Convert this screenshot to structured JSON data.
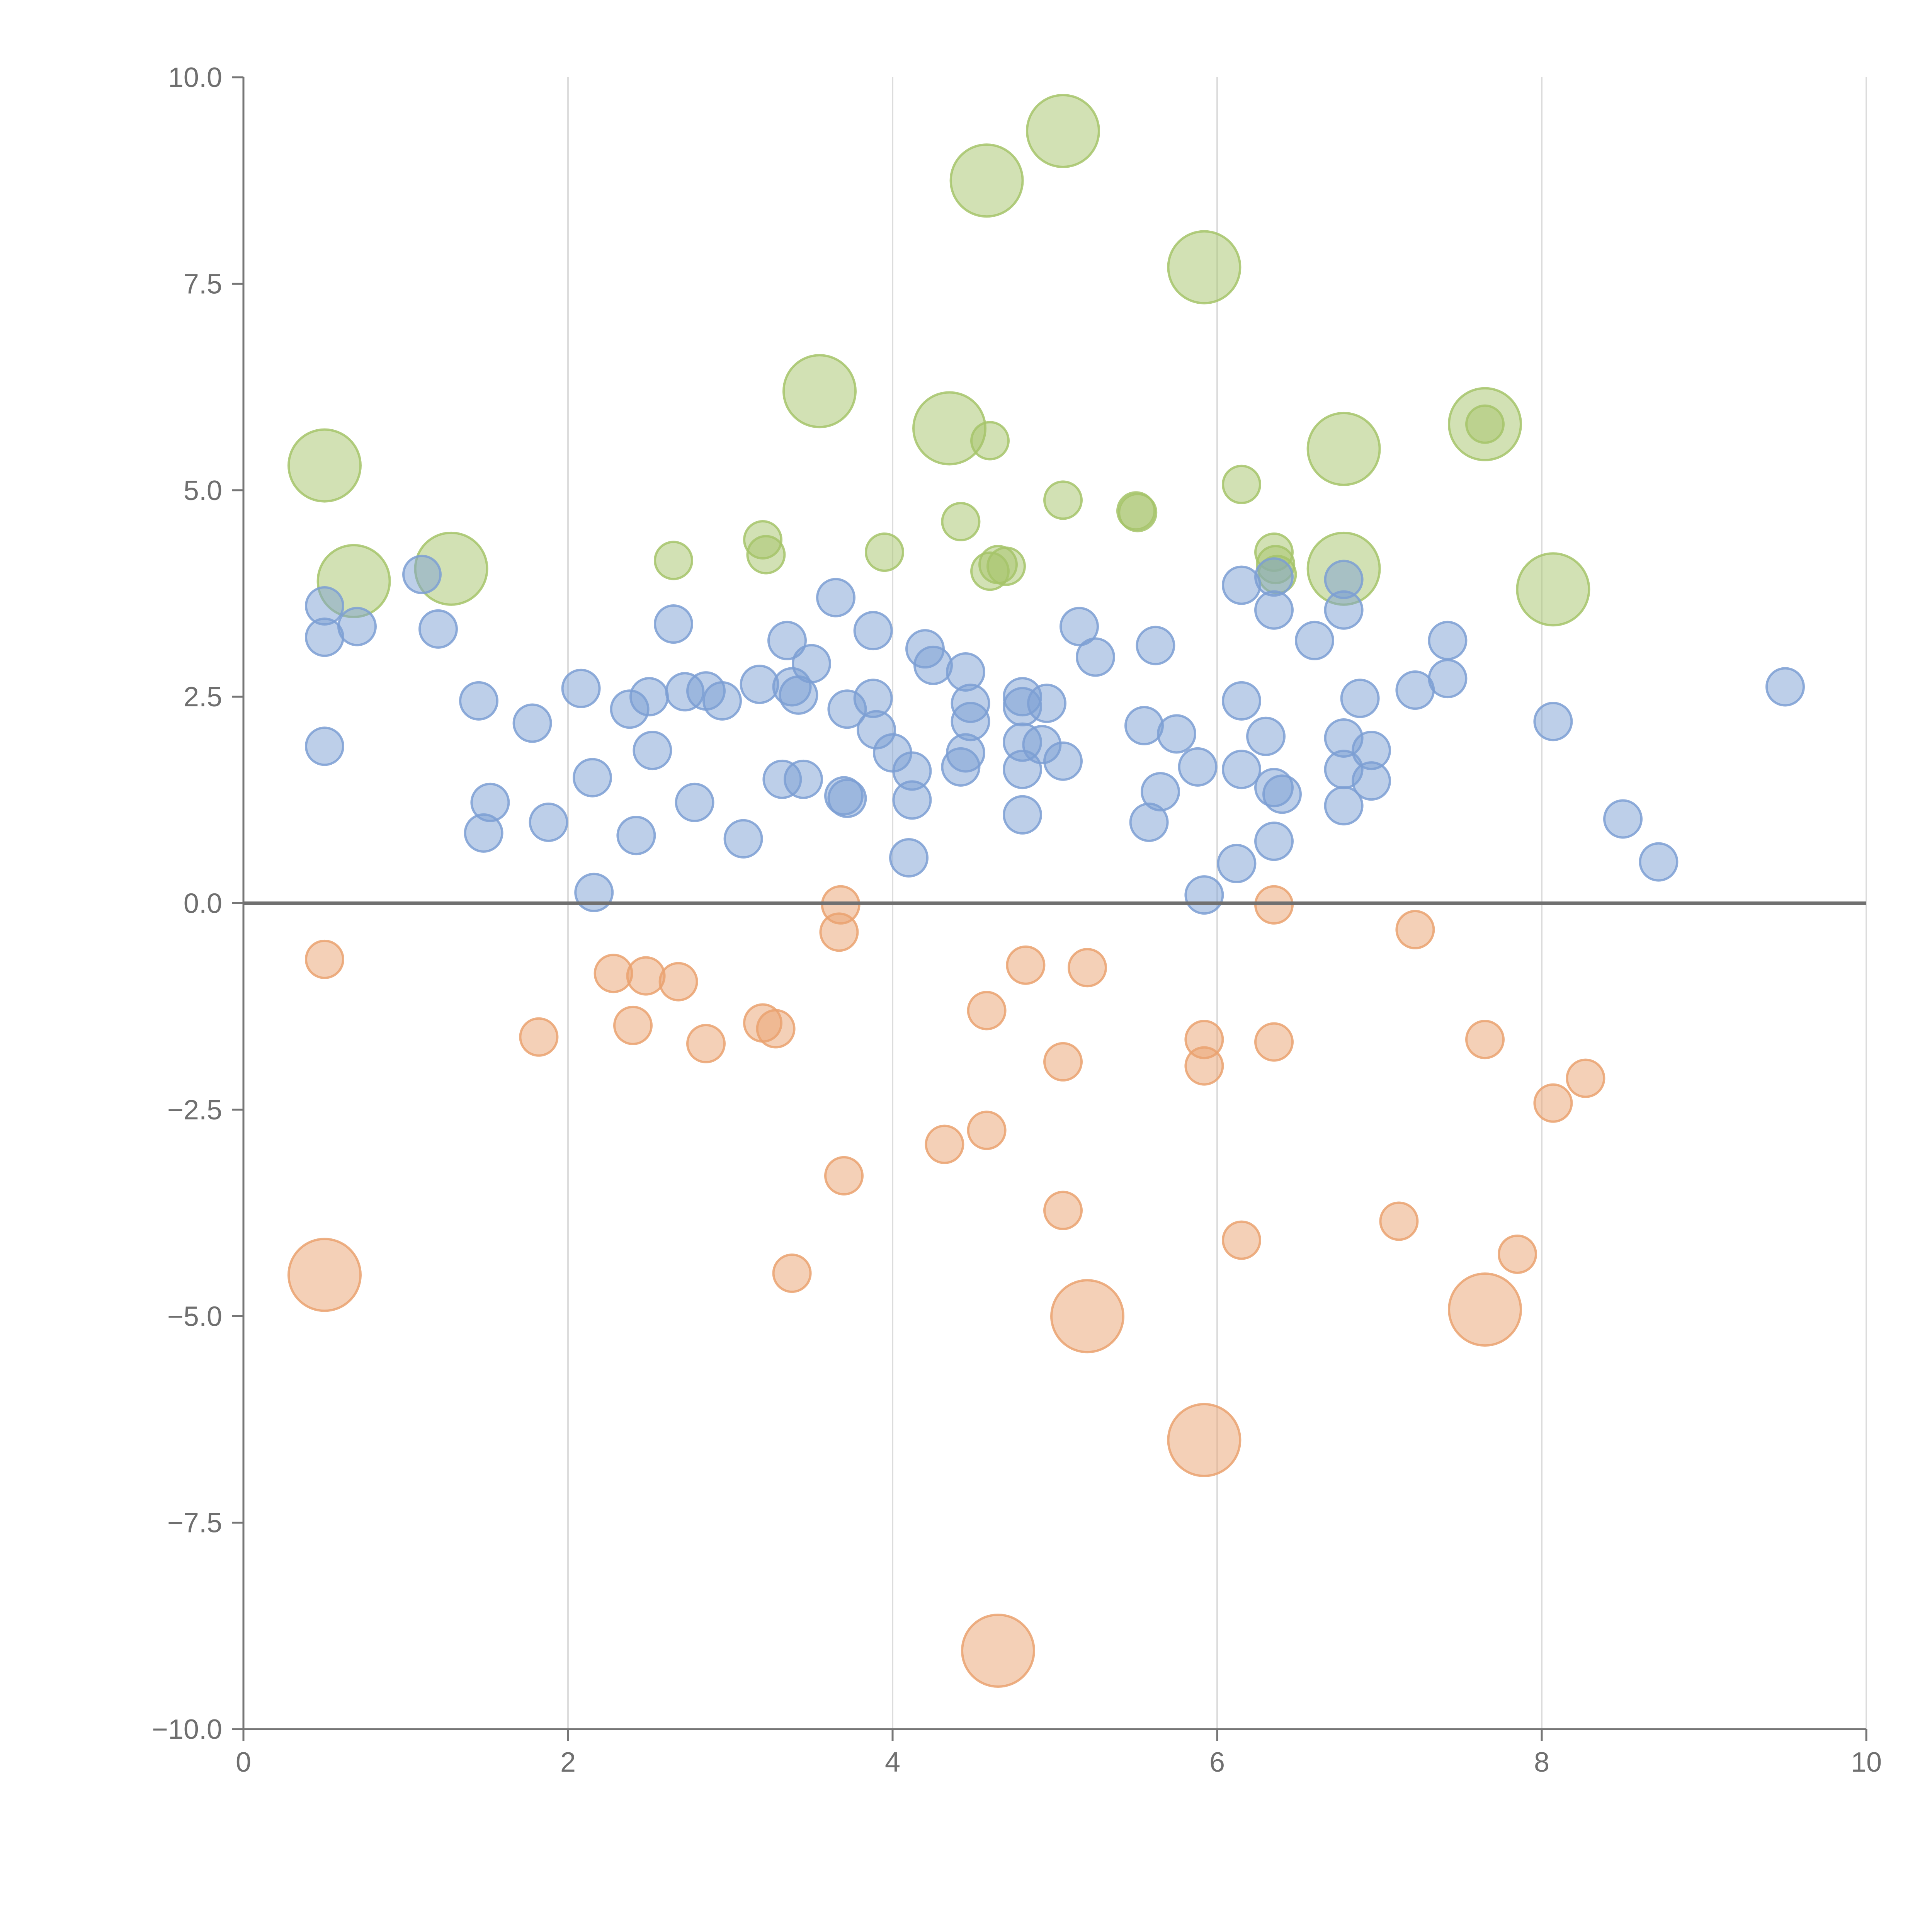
{
  "chart_data": {
    "type": "scatter",
    "title": "",
    "xlabel": "",
    "ylabel": "",
    "xlim": [
      0,
      10
    ],
    "ylim": [
      -10,
      10
    ],
    "x_ticks": [
      0,
      2,
      4,
      6,
      8,
      10
    ],
    "x_tick_labels": [
      "0",
      "2",
      "4",
      "6",
      "8",
      "10"
    ],
    "y_ticks": [
      10,
      7.5,
      5,
      2.5,
      0,
      -2.5,
      -5,
      -7.5,
      -10
    ],
    "y_tick_labels": [
      "10.0",
      "7.5",
      "5.0",
      "2.5",
      "0.0",
      "−2.5",
      "−5.0",
      "−7.5",
      "−10.0"
    ],
    "grid": "vertical",
    "legend": "none",
    "series": [
      {
        "name": "green",
        "color": "#a6c46a",
        "points": [
          [
            0.5,
            5.3,
            2
          ],
          [
            0.68,
            3.9,
            2
          ],
          [
            1.28,
            4.05,
            2
          ],
          [
            3.55,
            6.2,
            2
          ],
          [
            4.35,
            5.75,
            2
          ],
          [
            4.58,
            8.75,
            2
          ],
          [
            5.05,
            9.35,
            2
          ],
          [
            5.92,
            7.7,
            2
          ],
          [
            6.78,
            5.5,
            2
          ],
          [
            6.78,
            4.05,
            2
          ],
          [
            7.65,
            5.8,
            2
          ],
          [
            8.07,
            3.8,
            2
          ],
          [
            2.65,
            4.15,
            1
          ],
          [
            3.2,
            4.4,
            1
          ],
          [
            3.22,
            4.22,
            1
          ],
          [
            3.95,
            4.25,
            1
          ],
          [
            4.42,
            4.62,
            1
          ],
          [
            4.6,
            5.6,
            1
          ],
          [
            4.6,
            4.02,
            1
          ],
          [
            4.65,
            4.1,
            1
          ],
          [
            4.7,
            4.08,
            1
          ],
          [
            5.05,
            4.88,
            1
          ],
          [
            5.5,
            4.75,
            1
          ],
          [
            5.51,
            4.73,
            1
          ],
          [
            6.15,
            5.07,
            1
          ],
          [
            6.35,
            4.25,
            1
          ],
          [
            6.36,
            4.1,
            1
          ],
          [
            6.37,
            3.98,
            1
          ],
          [
            7.65,
            5.8,
            1
          ]
        ]
      },
      {
        "name": "blue",
        "color": "#7c9fd4",
        "points": [
          [
            0.5,
            3.6,
            1
          ],
          [
            0.5,
            3.22,
            1
          ],
          [
            0.5,
            1.9,
            1
          ],
          [
            0.7,
            3.35,
            1
          ],
          [
            1.1,
            3.98,
            1
          ],
          [
            1.2,
            3.32,
            1
          ],
          [
            1.45,
            2.45,
            1
          ],
          [
            1.48,
            0.85,
            1
          ],
          [
            1.52,
            1.22,
            1
          ],
          [
            1.78,
            2.18,
            1
          ],
          [
            1.88,
            0.98,
            1
          ],
          [
            2.08,
            2.6,
            1
          ],
          [
            2.15,
            1.52,
            1
          ],
          [
            2.16,
            0.13,
            1
          ],
          [
            2.38,
            2.35,
            1
          ],
          [
            2.42,
            0.82,
            1
          ],
          [
            2.5,
            2.5,
            1
          ],
          [
            2.52,
            1.85,
            1
          ],
          [
            2.65,
            3.38,
            1
          ],
          [
            2.72,
            2.56,
            1
          ],
          [
            2.78,
            1.22,
            1
          ],
          [
            2.85,
            2.57,
            1
          ],
          [
            2.95,
            2.45,
            1
          ],
          [
            3.08,
            0.78,
            1
          ],
          [
            3.18,
            2.65,
            1
          ],
          [
            3.32,
            1.5,
            1
          ],
          [
            3.35,
            3.18,
            1
          ],
          [
            3.38,
            2.62,
            1
          ],
          [
            3.42,
            2.52,
            1
          ],
          [
            3.45,
            1.5,
            1
          ],
          [
            3.5,
            2.9,
            1
          ],
          [
            3.65,
            3.7,
            1
          ],
          [
            3.72,
            2.35,
            1
          ],
          [
            3.7,
            1.3,
            1
          ],
          [
            3.72,
            1.27,
            1
          ],
          [
            3.88,
            2.48,
            1
          ],
          [
            3.88,
            3.3,
            1
          ],
          [
            3.9,
            2.1,
            1
          ],
          [
            4.0,
            1.82,
            1
          ],
          [
            4.12,
            1.6,
            1
          ],
          [
            4.12,
            1.25,
            1
          ],
          [
            4.1,
            0.55,
            1
          ],
          [
            4.2,
            3.08,
            1
          ],
          [
            4.25,
            2.88,
            1
          ],
          [
            4.42,
            1.65,
            1
          ],
          [
            4.45,
            2.8,
            1
          ],
          [
            4.45,
            1.82,
            1
          ],
          [
            4.48,
            2.2,
            1
          ],
          [
            4.48,
            2.42,
            1
          ],
          [
            4.8,
            2.5,
            1
          ],
          [
            4.8,
            2.38,
            1
          ],
          [
            4.8,
            1.95,
            1
          ],
          [
            4.8,
            1.62,
            1
          ],
          [
            4.8,
            1.07,
            1
          ],
          [
            4.92,
            1.92,
            1
          ],
          [
            4.95,
            2.42,
            1
          ],
          [
            5.05,
            1.72,
            1
          ],
          [
            5.15,
            3.35,
            1
          ],
          [
            5.25,
            2.98,
            1
          ],
          [
            5.55,
            2.15,
            1
          ],
          [
            5.58,
            0.98,
            1
          ],
          [
            5.62,
            3.12,
            1
          ],
          [
            5.65,
            1.35,
            1
          ],
          [
            5.75,
            2.05,
            1
          ],
          [
            5.88,
            1.65,
            1
          ],
          [
            5.92,
            0.1,
            1
          ],
          [
            6.12,
            0.48,
            1
          ],
          [
            6.15,
            3.85,
            1
          ],
          [
            6.15,
            2.45,
            1
          ],
          [
            6.15,
            1.62,
            1
          ],
          [
            6.3,
            2.02,
            1
          ],
          [
            6.35,
            1.4,
            1
          ],
          [
            6.35,
            0.75,
            1
          ],
          [
            6.35,
            3.95,
            1
          ],
          [
            6.35,
            3.55,
            1
          ],
          [
            6.4,
            1.32,
            1
          ],
          [
            6.6,
            3.18,
            1
          ],
          [
            6.78,
            3.92,
            1
          ],
          [
            6.78,
            3.55,
            1
          ],
          [
            6.78,
            2.0,
            1
          ],
          [
            6.78,
            1.62,
            1
          ],
          [
            6.78,
            1.18,
            1
          ],
          [
            6.88,
            2.48,
            1
          ],
          [
            6.95,
            1.85,
            1
          ],
          [
            6.95,
            1.48,
            1
          ],
          [
            7.22,
            2.58,
            1
          ],
          [
            7.42,
            3.18,
            1
          ],
          [
            7.42,
            2.72,
            1
          ],
          [
            8.07,
            2.2,
            1
          ],
          [
            8.5,
            1.02,
            1
          ],
          [
            8.72,
            0.5,
            1
          ],
          [
            9.5,
            2.62,
            1
          ]
        ]
      },
      {
        "name": "orange",
        "color": "#eaa270",
        "points": [
          [
            0.5,
            -4.5,
            2
          ],
          [
            5.2,
            -5.0,
            2
          ],
          [
            5.92,
            -6.5,
            2
          ],
          [
            4.65,
            -9.05,
            2
          ],
          [
            7.65,
            -4.92,
            2
          ],
          [
            0.5,
            -0.68,
            1
          ],
          [
            1.82,
            -1.62,
            1
          ],
          [
            2.28,
            -0.85,
            1
          ],
          [
            2.4,
            -1.48,
            1
          ],
          [
            2.48,
            -0.88,
            1
          ],
          [
            2.68,
            -0.95,
            1
          ],
          [
            2.85,
            -1.7,
            1
          ],
          [
            3.2,
            -1.45,
            1
          ],
          [
            3.28,
            -1.52,
            1
          ],
          [
            3.38,
            -4.48,
            1
          ],
          [
            3.68,
            -0.02,
            1
          ],
          [
            3.67,
            -0.35,
            1
          ],
          [
            3.7,
            -3.3,
            1
          ],
          [
            4.32,
            -2.92,
            1
          ],
          [
            4.58,
            -2.75,
            1
          ],
          [
            4.58,
            -1.3,
            1
          ],
          [
            4.82,
            -0.75,
            1
          ],
          [
            5.05,
            -3.72,
            1
          ],
          [
            5.05,
            -1.92,
            1
          ],
          [
            5.2,
            -0.78,
            1
          ],
          [
            5.92,
            -1.65,
            1
          ],
          [
            5.92,
            -1.97,
            1
          ],
          [
            6.15,
            -4.08,
            1
          ],
          [
            6.35,
            -0.02,
            1
          ],
          [
            6.35,
            -1.68,
            1
          ],
          [
            7.12,
            -3.85,
            1
          ],
          [
            7.22,
            -0.32,
            1
          ],
          [
            7.65,
            -1.65,
            1
          ],
          [
            7.85,
            -4.25,
            1
          ],
          [
            8.07,
            -2.42,
            1
          ],
          [
            8.27,
            -2.12,
            1
          ]
        ]
      }
    ]
  }
}
